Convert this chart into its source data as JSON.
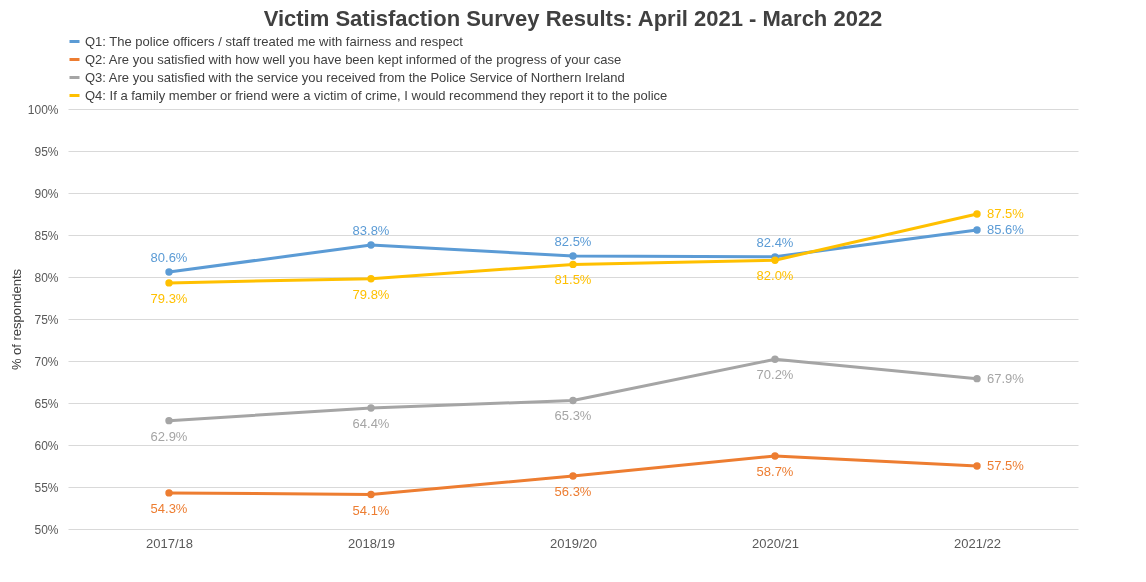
{
  "chart_data": {
    "type": "line",
    "title": "Victim Satisfaction Survey Results: April 2021 - March 2022",
    "ylabel": "% of respondents",
    "categories": [
      "2017/18",
      "2018/19",
      "2019/20",
      "2020/21",
      "2021/22"
    ],
    "series": [
      {
        "name": "Q1: The police officers / staff treated me with fairness and respect",
        "color": "#5b9bd5",
        "values": [
          80.6,
          83.8,
          82.5,
          82.4,
          85.6
        ],
        "value_labels": [
          "80.6%",
          "83.8%",
          "82.5%",
          "82.4%",
          "85.6%"
        ]
      },
      {
        "name": "Q2: Are you satisfied with how well you have been kept informed of the progress of your case",
        "color": "#ed7d31",
        "values": [
          54.3,
          54.1,
          56.3,
          58.7,
          57.5
        ],
        "value_labels": [
          "54.3%",
          "54.1%",
          "56.3%",
          "58.7%",
          "57.5%"
        ]
      },
      {
        "name": "Q3: Are you satisfied with the service you received from the Police Service of Northern Ireland",
        "color": "#a5a5a5",
        "values": [
          62.9,
          64.4,
          65.3,
          70.2,
          67.9
        ],
        "value_labels": [
          "62.9%",
          "64.4%",
          "65.3%",
          "70.2%",
          "67.9%"
        ]
      },
      {
        "name": "Q4: If a family member or friend were a victim of crime, I would recommend they report it to the police",
        "color": "#ffc000",
        "values": [
          79.3,
          79.8,
          81.5,
          82.0,
          87.5
        ],
        "value_labels": [
          "79.3%",
          "79.8%",
          "81.5%",
          "82.0%",
          "87.5%"
        ]
      }
    ],
    "ylim": [
      50,
      100
    ],
    "yticks": [
      {
        "value": 50,
        "label": "50%"
      },
      {
        "value": 55,
        "label": "55%"
      },
      {
        "value": 60,
        "label": "60%"
      },
      {
        "value": 65,
        "label": "65%"
      },
      {
        "value": 70,
        "label": "70%"
      },
      {
        "value": 75,
        "label": "75%"
      },
      {
        "value": 80,
        "label": "80%"
      },
      {
        "value": 85,
        "label": "85%"
      },
      {
        "value": 90,
        "label": "90%"
      },
      {
        "value": 95,
        "label": "95%"
      },
      {
        "value": 100,
        "label": "100%"
      }
    ],
    "grid": "y",
    "legend": "top",
    "marker": "circle",
    "line_style": "solid"
  }
}
